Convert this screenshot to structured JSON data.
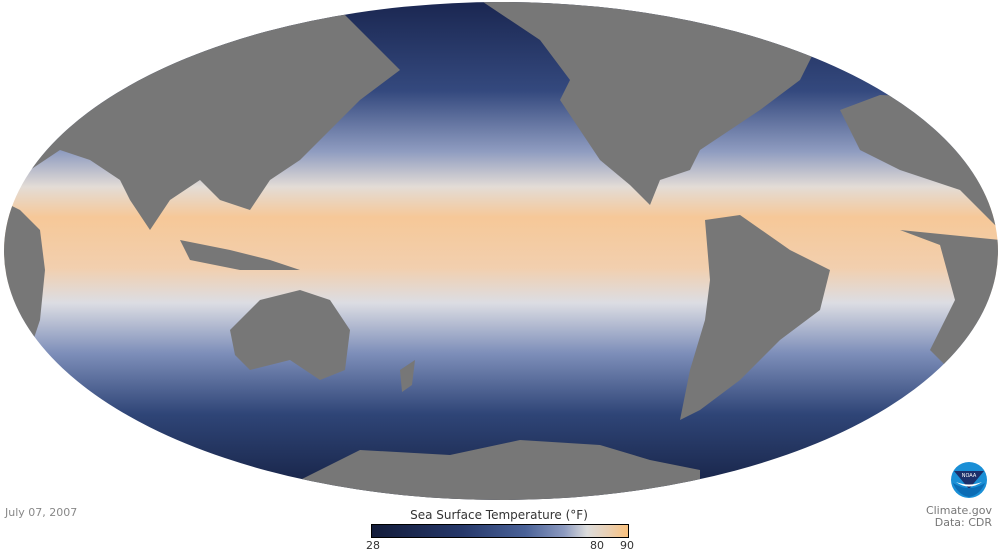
{
  "map": {
    "projection": "mollweide",
    "date": "July 07, 2007",
    "colors": {
      "land": "#777777",
      "cold": "#131c3a",
      "mid": "#dcdcdc",
      "warm": "#fbc27e"
    }
  },
  "legend": {
    "title": "Sea Surface Temperature (°F)",
    "ticks": [
      "28",
      "80",
      "90"
    ],
    "min": 28,
    "max": 90
  },
  "credits": {
    "site": "Climate.gov",
    "data": "Data: CDR",
    "logo_text": "NOAA"
  }
}
